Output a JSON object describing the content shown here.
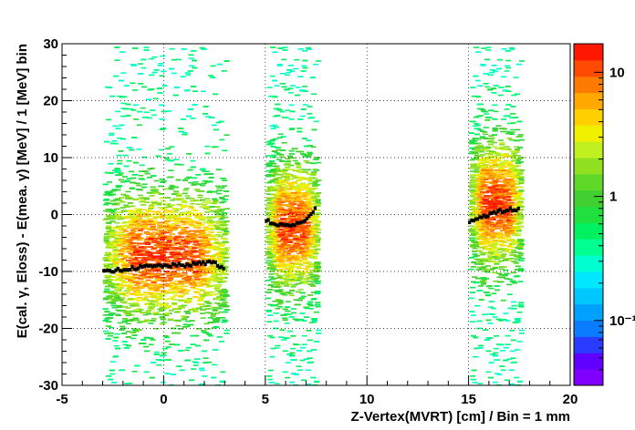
{
  "chart_data": {
    "type": "heatmap",
    "title": "",
    "xlabel": "Z-Vertex(MVRT) [cm] / Bin = 1 mm",
    "ylabel": "E(cal. γ, Eloss) - E(mea. γ) [MeV] / 1 [MeV] bin",
    "xlim": [
      -5,
      20
    ],
    "ylim": [
      -30,
      30
    ],
    "x_ticks": [
      -5,
      0,
      5,
      10,
      15,
      20
    ],
    "y_ticks": [
      -30,
      -20,
      -10,
      0,
      10,
      20,
      30
    ],
    "grid": true,
    "colorbar": {
      "scale": "log",
      "tick_labels": [
        {
          "value": 10,
          "text": "10"
        },
        {
          "value": 1,
          "text": "1"
        },
        {
          "value": 0.1,
          "text": "10⁻¹"
        }
      ],
      "colors": [
        "#8000ff",
        "#6000ff",
        "#2a3cff",
        "#0a7cff",
        "#00a0ff",
        "#00c8ff",
        "#00e8ff",
        "#00ffd0",
        "#00ff90",
        "#00f060",
        "#20e040",
        "#40d030",
        "#60d828",
        "#90e020",
        "#c0f020",
        "#f0f000",
        "#ffd000",
        "#ffa800",
        "#ff7a00",
        "#ff4a00",
        "#ff1800"
      ]
    },
    "bands": [
      {
        "name": "z -3 to 3",
        "x_range": [
          -3,
          3
        ],
        "y_range": [
          -30,
          21
        ],
        "peak_y": -7,
        "mean_profile": [
          [
            -3,
            -10.2
          ],
          [
            -2,
            -9.6
          ],
          [
            -1,
            -9.2
          ],
          [
            0,
            -9.0
          ],
          [
            1,
            -8.9
          ],
          [
            2,
            -8.5
          ],
          [
            2.5,
            -8.3
          ],
          [
            3,
            -9.8
          ]
        ]
      },
      {
        "name": "z 5 to 7.5",
        "x_range": [
          5,
          7.5
        ],
        "y_range": [
          -30,
          21
        ],
        "peak_y": -2,
        "mean_profile": [
          [
            5,
            -1.0
          ],
          [
            5.5,
            -1.8
          ],
          [
            6,
            -1.9
          ],
          [
            6.5,
            -1.7
          ],
          [
            7,
            -1.2
          ],
          [
            7.5,
            1.5
          ]
        ]
      },
      {
        "name": "z 15 to 17.5",
        "x_range": [
          15,
          17.5
        ],
        "y_range": [
          -30,
          21
        ],
        "peak_y": 2,
        "mean_profile": [
          [
            15,
            -1.2
          ],
          [
            15.5,
            -0.6
          ],
          [
            16,
            0.0
          ],
          [
            16.5,
            0.5
          ],
          [
            17,
            0.9
          ],
          [
            17.5,
            0.8
          ]
        ]
      }
    ]
  }
}
